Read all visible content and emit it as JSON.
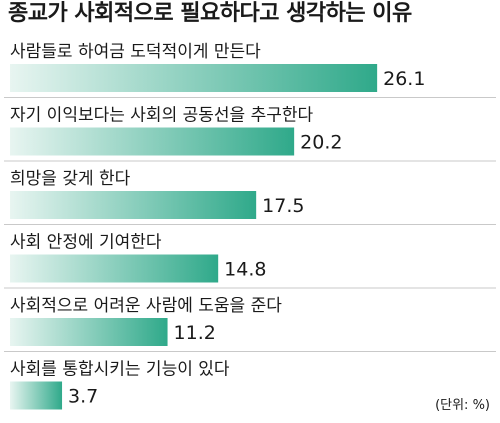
{
  "chart_data": {
    "type": "bar",
    "orientation": "horizontal",
    "title": "종교가 사회적으로 필요하다고 생각하는 이유",
    "unit_note": "(단위: %)",
    "categories": [
      "사람들로 하여금 도덕적이게 만든다",
      "자기 이익보다는 사회의 공동선을 추구한다",
      "희망을 갖게 한다",
      "사회 안정에 기여한다",
      "사회적으로 어려운 사람에 도움을 준다",
      "사회를 통합시키는 기능이 있다"
    ],
    "values": [
      26.1,
      20.2,
      17.5,
      14.8,
      11.2,
      3.7
    ],
    "value_labels": [
      "26.1",
      "20.2",
      "17.5",
      "14.8",
      "11.2",
      "3.7"
    ],
    "xlim": [
      0,
      30
    ],
    "grid": false,
    "legend": "none",
    "colors": {
      "bar_start": "#e8f5f1",
      "bar_end": "#2fa98a",
      "separator": "#c9c9c9"
    }
  }
}
